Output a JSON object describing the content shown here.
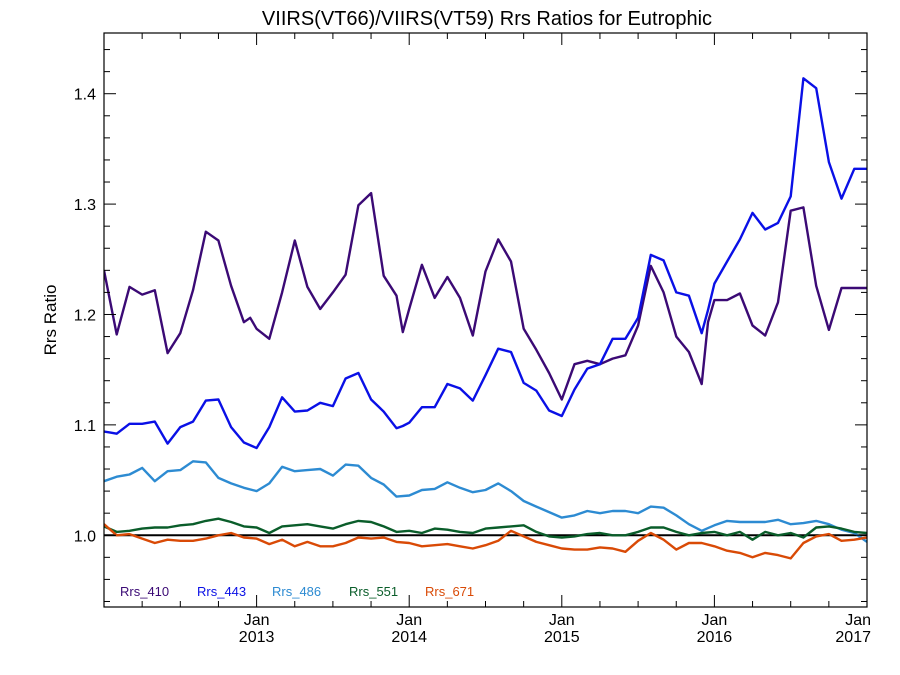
{
  "chart_data": {
    "type": "line",
    "title": "VIIRS(VT66)/VIIRS(VT59)  Rrs Ratios for Eutrophic",
    "xlabel": "",
    "ylabel": "Rrs Ratio",
    "xlim": [
      2012.0,
      2017.0
    ],
    "ylim": [
      0.935,
      1.455
    ],
    "y_ticks": [
      {
        "value": 1.0,
        "label": "1.0"
      },
      {
        "value": 1.1,
        "label": "1.1"
      },
      {
        "value": 1.2,
        "label": "1.2"
      },
      {
        "value": 1.3,
        "label": "1.3"
      },
      {
        "value": 1.4,
        "label": "1.4"
      }
    ],
    "x_ticks": [
      {
        "value": 2013.0,
        "month": "Jan",
        "year": "2013"
      },
      {
        "value": 2014.0,
        "month": "Jan",
        "year": "2014"
      },
      {
        "value": 2015.0,
        "month": "Jan",
        "year": "2015"
      },
      {
        "value": 2016.0,
        "month": "Jan",
        "year": "2016"
      },
      {
        "value": 2017.0,
        "month": "Jan",
        "year": "2017"
      }
    ],
    "reference_line": 1.0,
    "series": [
      {
        "name": "Rrs_410",
        "color": "#3b0a75",
        "x": [
          2012.0,
          2012.083,
          2012.167,
          2012.25,
          2012.333,
          2012.417,
          2012.5,
          2012.583,
          2012.667,
          2012.75,
          2012.833,
          2012.917,
          2012.958,
          2013.0,
          2013.083,
          2013.167,
          2013.25,
          2013.333,
          2013.417,
          2013.5,
          2013.583,
          2013.667,
          2013.75,
          2013.833,
          2013.917,
          2013.958,
          2014.0,
          2014.083,
          2014.167,
          2014.25,
          2014.333,
          2014.417,
          2014.5,
          2014.583,
          2014.667,
          2014.75,
          2014.833,
          2014.917,
          2015.0,
          2015.083,
          2015.167,
          2015.25,
          2015.333,
          2015.417,
          2015.5,
          2015.583,
          2015.667,
          2015.75,
          2015.833,
          2015.917,
          2015.958,
          2016.0,
          2016.083,
          2016.167,
          2016.25,
          2016.333,
          2016.417,
          2016.5,
          2016.583,
          2016.667,
          2016.75,
          2016.833,
          2016.917,
          2016.958,
          2017.0
        ],
        "y": [
          1.24,
          1.182,
          1.225,
          1.218,
          1.222,
          1.165,
          1.183,
          1.222,
          1.275,
          1.267,
          1.226,
          1.193,
          1.197,
          1.187,
          1.178,
          1.22,
          1.267,
          1.225,
          1.205,
          1.22,
          1.236,
          1.299,
          1.31,
          1.235,
          1.217,
          1.184,
          1.205,
          1.245,
          1.215,
          1.234,
          1.215,
          1.181,
          1.239,
          1.268,
          1.248,
          1.187,
          1.168,
          1.147,
          1.123,
          1.155,
          1.158,
          1.155,
          1.16,
          1.163,
          1.19,
          1.244,
          1.22,
          1.18,
          1.166,
          1.137,
          1.193,
          1.213,
          1.213,
          1.219,
          1.19,
          1.181,
          1.211,
          1.294,
          1.297,
          1.226,
          1.186,
          1.224,
          1.224,
          1.224,
          1.224
        ]
      },
      {
        "name": "Rrs_443",
        "color": "#0a10e6",
        "x": [
          2012.0,
          2012.042,
          2012.083,
          2012.167,
          2012.25,
          2012.333,
          2012.417,
          2012.5,
          2012.583,
          2012.667,
          2012.75,
          2012.833,
          2012.917,
          2013.0,
          2013.083,
          2013.167,
          2013.25,
          2013.333,
          2013.417,
          2013.5,
          2013.583,
          2013.667,
          2013.75,
          2013.833,
          2013.917,
          2013.958,
          2014.0,
          2014.083,
          2014.167,
          2014.25,
          2014.333,
          2014.417,
          2014.5,
          2014.583,
          2014.667,
          2014.75,
          2014.833,
          2014.917,
          2015.0,
          2015.083,
          2015.167,
          2015.25,
          2015.333,
          2015.417,
          2015.5,
          2015.583,
          2015.667,
          2015.75,
          2015.833,
          2015.917,
          2015.958,
          2016.0,
          2016.083,
          2016.167,
          2016.25,
          2016.333,
          2016.417,
          2016.5,
          2016.583,
          2016.667,
          2016.75,
          2016.833,
          2016.917,
          2016.958,
          2017.0
        ],
        "y": [
          1.094,
          1.093,
          1.092,
          1.101,
          1.101,
          1.103,
          1.083,
          1.098,
          1.103,
          1.122,
          1.123,
          1.098,
          1.084,
          1.079,
          1.098,
          1.125,
          1.112,
          1.113,
          1.12,
          1.117,
          1.142,
          1.147,
          1.123,
          1.112,
          1.097,
          1.099,
          1.102,
          1.116,
          1.116,
          1.137,
          1.133,
          1.122,
          1.145,
          1.169,
          1.166,
          1.138,
          1.131,
          1.113,
          1.108,
          1.132,
          1.151,
          1.155,
          1.178,
          1.178,
          1.197,
          1.254,
          1.249,
          1.22,
          1.217,
          1.183,
          1.204,
          1.228,
          1.248,
          1.268,
          1.292,
          1.277,
          1.283,
          1.307,
          1.414,
          1.405,
          1.338,
          1.305,
          1.332,
          1.332,
          1.332
        ]
      },
      {
        "name": "Rrs_486",
        "color": "#2d8bd2",
        "x": [
          2012.0,
          2012.083,
          2012.167,
          2012.25,
          2012.333,
          2012.417,
          2012.5,
          2012.583,
          2012.667,
          2012.75,
          2012.833,
          2012.917,
          2013.0,
          2013.083,
          2013.167,
          2013.25,
          2013.333,
          2013.417,
          2013.5,
          2013.583,
          2013.667,
          2013.75,
          2013.833,
          2013.917,
          2014.0,
          2014.083,
          2014.167,
          2014.25,
          2014.333,
          2014.417,
          2014.5,
          2014.583,
          2014.667,
          2014.75,
          2014.833,
          2014.917,
          2015.0,
          2015.083,
          2015.167,
          2015.25,
          2015.333,
          2015.417,
          2015.5,
          2015.583,
          2015.667,
          2015.75,
          2015.833,
          2015.917,
          2016.0,
          2016.083,
          2016.167,
          2016.25,
          2016.333,
          2016.417,
          2016.5,
          2016.583,
          2016.667,
          2016.75,
          2016.833,
          2016.917,
          2017.0
        ],
        "y": [
          1.049,
          1.053,
          1.055,
          1.061,
          1.049,
          1.058,
          1.059,
          1.067,
          1.066,
          1.052,
          1.047,
          1.043,
          1.04,
          1.047,
          1.062,
          1.058,
          1.059,
          1.06,
          1.054,
          1.064,
          1.063,
          1.052,
          1.046,
          1.035,
          1.036,
          1.041,
          1.042,
          1.048,
          1.043,
          1.039,
          1.041,
          1.047,
          1.04,
          1.031,
          1.026,
          1.021,
          1.016,
          1.018,
          1.022,
          1.02,
          1.022,
          1.022,
          1.02,
          1.026,
          1.025,
          1.018,
          1.01,
          1.004,
          1.009,
          1.013,
          1.012,
          1.012,
          1.012,
          1.014,
          1.01,
          1.011,
          1.013,
          1.01,
          1.005,
          1.002,
          0.994
        ]
      },
      {
        "name": "Rrs_551",
        "color": "#0a5d2a",
        "x": [
          2012.0,
          2012.083,
          2012.167,
          2012.25,
          2012.333,
          2012.417,
          2012.5,
          2012.583,
          2012.667,
          2012.75,
          2012.833,
          2012.917,
          2013.0,
          2013.083,
          2013.167,
          2013.25,
          2013.333,
          2013.417,
          2013.5,
          2013.583,
          2013.667,
          2013.75,
          2013.833,
          2013.917,
          2014.0,
          2014.083,
          2014.167,
          2014.25,
          2014.333,
          2014.417,
          2014.5,
          2014.583,
          2014.667,
          2014.75,
          2014.833,
          2014.917,
          2015.0,
          2015.083,
          2015.167,
          2015.25,
          2015.333,
          2015.417,
          2015.5,
          2015.583,
          2015.667,
          2015.75,
          2015.833,
          2015.917,
          2016.0,
          2016.083,
          2016.167,
          2016.25,
          2016.333,
          2016.417,
          2016.5,
          2016.583,
          2016.667,
          2016.75,
          2016.833,
          2016.917,
          2017.0
        ],
        "y": [
          1.008,
          1.003,
          1.004,
          1.006,
          1.007,
          1.007,
          1.009,
          1.01,
          1.013,
          1.015,
          1.012,
          1.008,
          1.007,
          1.002,
          1.008,
          1.009,
          1.01,
          1.008,
          1.006,
          1.01,
          1.013,
          1.012,
          1.008,
          1.003,
          1.004,
          1.002,
          1.006,
          1.005,
          1.003,
          1.002,
          1.006,
          1.007,
          1.008,
          1.009,
          1.003,
          0.999,
          0.998,
          0.999,
          1.001,
          1.002,
          1.0,
          1.0,
          1.003,
          1.007,
          1.007,
          1.003,
          1.0,
          1.002,
          1.003,
          1.0,
          1.003,
          0.996,
          1.003,
          1.0,
          1.002,
          0.998,
          1.007,
          1.008,
          1.006,
          1.003,
          1.002
        ]
      },
      {
        "name": "Rrs_671",
        "color": "#d94a06",
        "x": [
          2012.0,
          2012.083,
          2012.167,
          2012.25,
          2012.333,
          2012.417,
          2012.5,
          2012.583,
          2012.667,
          2012.75,
          2012.833,
          2012.917,
          2013.0,
          2013.083,
          2013.167,
          2013.25,
          2013.333,
          2013.417,
          2013.5,
          2013.583,
          2013.667,
          2013.75,
          2013.833,
          2013.917,
          2014.0,
          2014.083,
          2014.167,
          2014.25,
          2014.333,
          2014.417,
          2014.5,
          2014.583,
          2014.667,
          2014.75,
          2014.833,
          2014.917,
          2015.0,
          2015.083,
          2015.167,
          2015.25,
          2015.333,
          2015.417,
          2015.5,
          2015.583,
          2015.667,
          2015.75,
          2015.833,
          2015.917,
          2016.0,
          2016.083,
          2016.167,
          2016.25,
          2016.333,
          2016.417,
          2016.5,
          2016.583,
          2016.667,
          2016.75,
          2016.833,
          2016.917,
          2017.0
        ],
        "y": [
          1.01,
          1.0,
          1.001,
          0.997,
          0.993,
          0.996,
          0.995,
          0.995,
          0.997,
          1.0,
          1.002,
          0.998,
          0.997,
          0.992,
          0.996,
          0.99,
          0.994,
          0.99,
          0.99,
          0.993,
          0.998,
          0.997,
          0.998,
          0.994,
          0.993,
          0.99,
          0.991,
          0.992,
          0.99,
          0.988,
          0.991,
          0.995,
          1.004,
          0.999,
          0.994,
          0.991,
          0.988,
          0.987,
          0.987,
          0.989,
          0.988,
          0.985,
          0.995,
          1.002,
          0.996,
          0.987,
          0.993,
          0.993,
          0.99,
          0.986,
          0.984,
          0.98,
          0.984,
          0.982,
          0.979,
          0.993,
          0.999,
          1.001,
          0.995,
          0.996,
          0.998
        ]
      }
    ]
  }
}
